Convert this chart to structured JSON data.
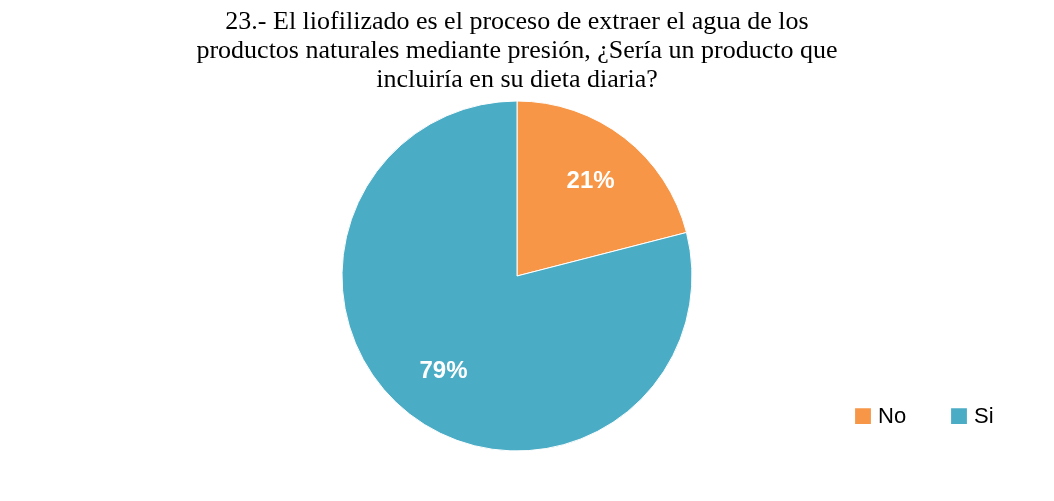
{
  "chart_data": {
    "type": "pie",
    "title": "23.- El liofilizado es el proceso de extraer el agua de los productos naturales mediante presión, ¿Sería un producto que incluiría en su dieta diaria?",
    "categories": [
      "No",
      "Si"
    ],
    "values": [
      21,
      79
    ],
    "colors": [
      "#f79646",
      "#4bacc6"
    ],
    "value_labels": [
      "21%",
      "79%"
    ],
    "legend": "bottom right"
  }
}
